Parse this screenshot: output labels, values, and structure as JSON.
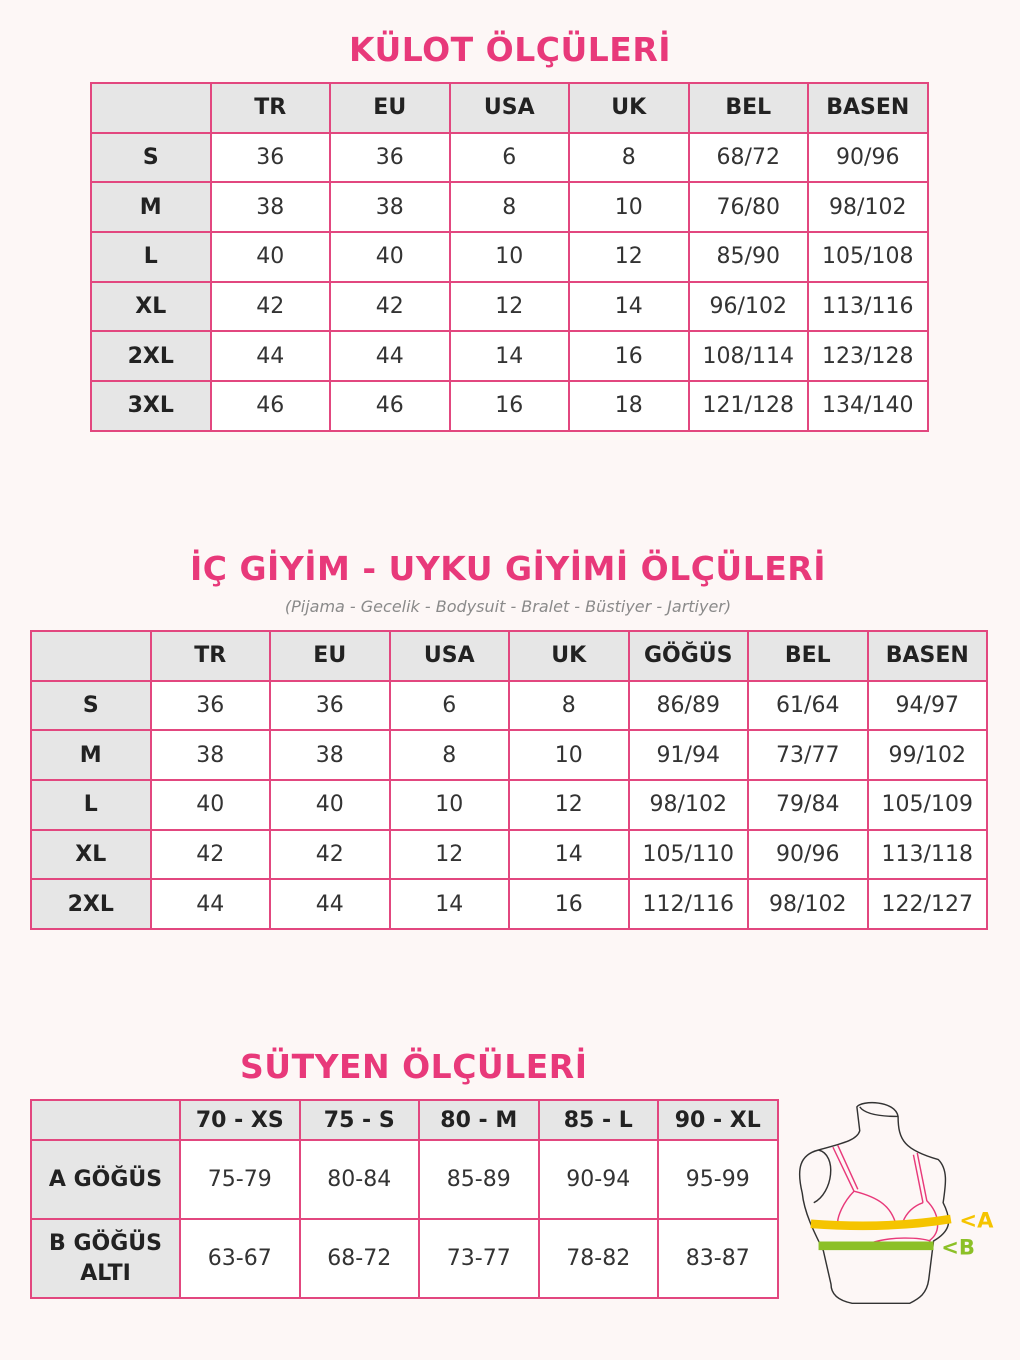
{
  "colors": {
    "accent": "#e8397a",
    "border": "#e2477f",
    "header_bg": "#e6e6e6",
    "band_a": "#f5c400",
    "band_b": "#8cc027"
  },
  "kulot": {
    "title": "KÜLOT ÖLÇÜLERİ",
    "headers": [
      "",
      "TR",
      "EU",
      "USA",
      "UK",
      "BEL",
      "BASEN"
    ],
    "rows": [
      [
        "S",
        "36",
        "36",
        "6",
        "8",
        "68/72",
        "90/96"
      ],
      [
        "M",
        "38",
        "38",
        "8",
        "10",
        "76/80",
        "98/102"
      ],
      [
        "L",
        "40",
        "40",
        "10",
        "12",
        "85/90",
        "105/108"
      ],
      [
        "XL",
        "42",
        "42",
        "12",
        "14",
        "96/102",
        "113/116"
      ],
      [
        "2XL",
        "44",
        "44",
        "14",
        "16",
        "108/114",
        "123/128"
      ],
      [
        "3XL",
        "46",
        "46",
        "16",
        "18",
        "121/128",
        "134/140"
      ]
    ]
  },
  "ic_giyim": {
    "title": "İÇ GİYİM - UYKU GİYİMİ ÖLÇÜLERİ",
    "subtitle": "(Pijama - Gecelik - Bodysuit - Bralet - Büstiyer - Jartiyer)",
    "headers": [
      "",
      "TR",
      "EU",
      "USA",
      "UK",
      "GÖĞÜS",
      "BEL",
      "BASEN"
    ],
    "rows": [
      [
        "S",
        "36",
        "36",
        "6",
        "8",
        "86/89",
        "61/64",
        "94/97"
      ],
      [
        "M",
        "38",
        "38",
        "8",
        "10",
        "91/94",
        "73/77",
        "99/102"
      ],
      [
        "L",
        "40",
        "40",
        "10",
        "12",
        "98/102",
        "79/84",
        "105/109"
      ],
      [
        "XL",
        "42",
        "42",
        "12",
        "14",
        "105/110",
        "90/96",
        "113/118"
      ],
      [
        "2XL",
        "44",
        "44",
        "14",
        "16",
        "112/116",
        "98/102",
        "122/127"
      ]
    ]
  },
  "sutyen": {
    "title": "SÜTYEN ÖLÇÜLERİ",
    "headers": [
      "",
      "70 - XS",
      "75 - S",
      "80 - M",
      "85 - L",
      "90 - XL"
    ],
    "rows": [
      [
        "A GÖĞÜS",
        "75-79",
        "80-84",
        "85-89",
        "90-94",
        "95-99"
      ],
      [
        "B GÖĞÜS ALTI",
        "63-67",
        "68-72",
        "73-77",
        "78-82",
        "83-87"
      ]
    ],
    "diagram": {
      "label_a": "<A",
      "label_b": "<B"
    }
  }
}
